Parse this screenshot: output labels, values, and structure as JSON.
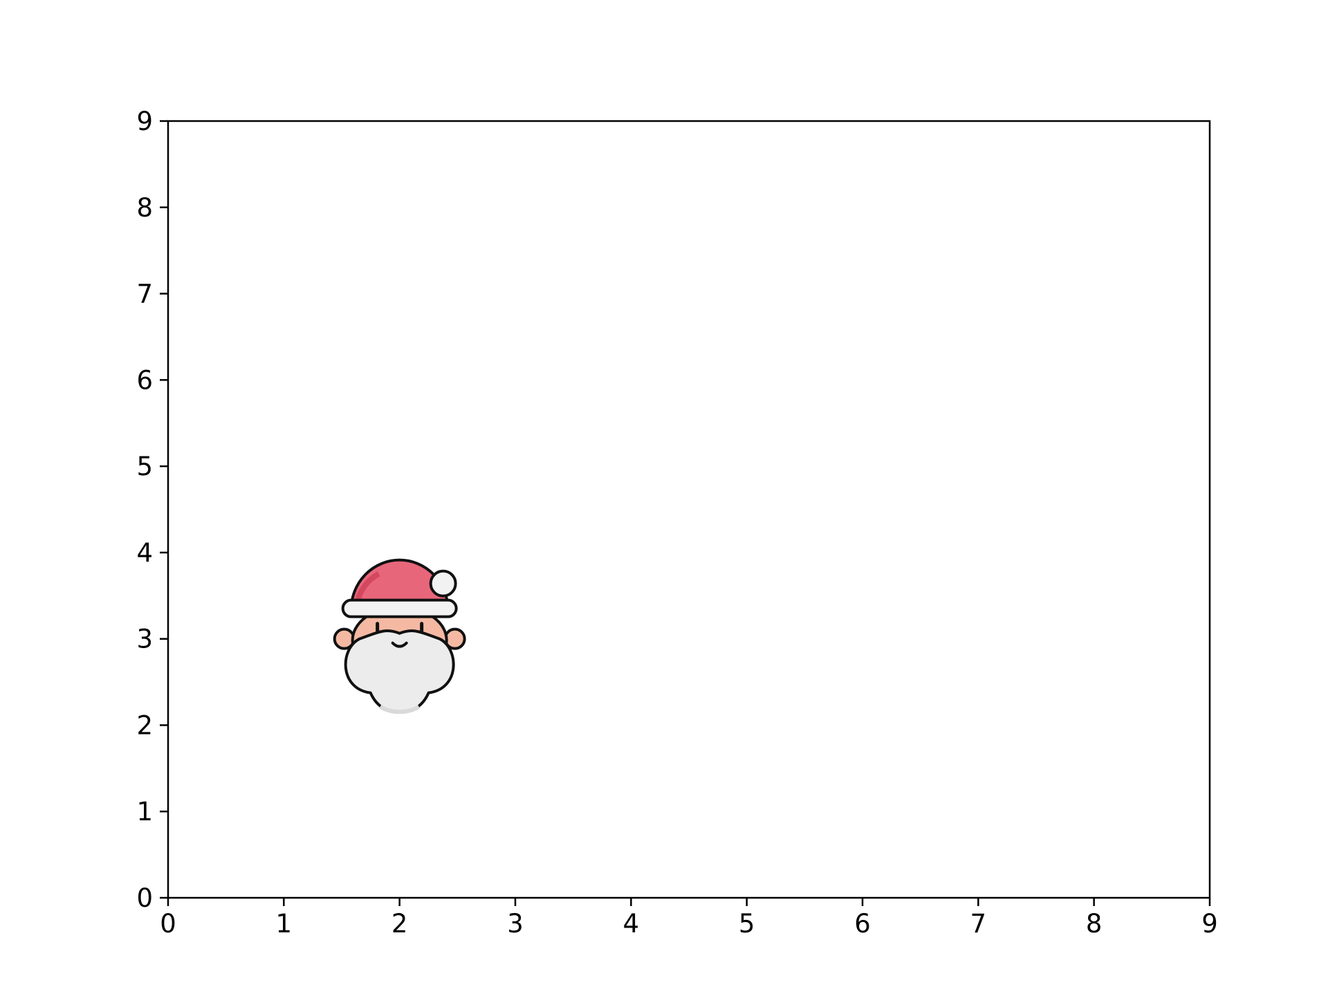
{
  "chart_data": {
    "type": "scatter",
    "title": "",
    "xlabel": "",
    "ylabel": "",
    "xlim": [
      0,
      9
    ],
    "ylim": [
      0,
      9
    ],
    "xticks": [
      "0",
      "1",
      "2",
      "3",
      "4",
      "5",
      "6",
      "7",
      "8",
      "9"
    ],
    "yticks": [
      "0",
      "1",
      "2",
      "3",
      "4",
      "5",
      "6",
      "7",
      "8",
      "9"
    ],
    "grid": false,
    "points": [
      {
        "x": 2,
        "y": 3,
        "marker": "santa-claus-icon"
      }
    ]
  },
  "colors": {
    "axis": "#000000",
    "hat": "#e8667a",
    "hat_shadow": "#d4485f",
    "fur": "#f2f2f2",
    "beard": "#ececec",
    "beard_shadow": "#d9d9d9",
    "skin": "#f5b9a3",
    "outline": "#111111"
  }
}
